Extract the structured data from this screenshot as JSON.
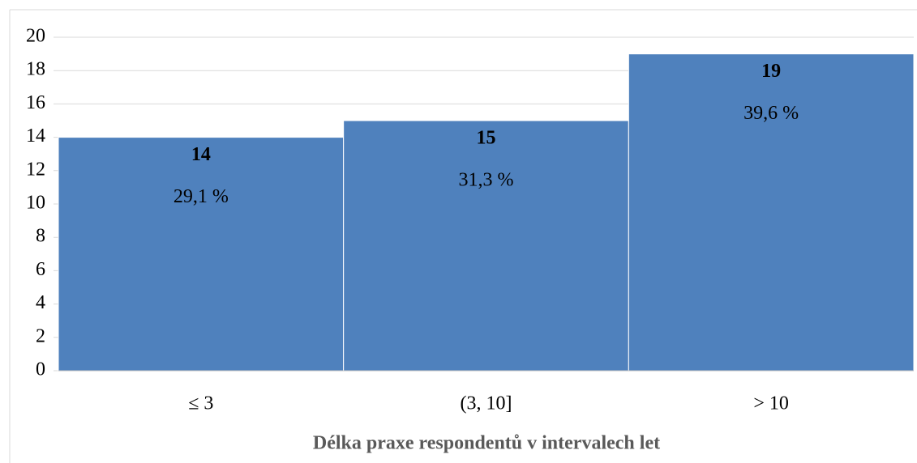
{
  "chart_data": {
    "type": "bar",
    "x_label": "Délka praxe respondentů v intervalech let",
    "categories": [
      "≤ 3",
      "(3, 10]",
      "> 10"
    ],
    "series": [
      {
        "color": "#4f81bd",
        "values": [
          14,
          15,
          19
        ]
      }
    ],
    "percentages": {
      "values": [
        29.1,
        31.3,
        39.6
      ],
      "value_labels": [
        "29,1 %",
        "31,3 %",
        "39,6 %"
      ]
    },
    "ylim": [
      0,
      20
    ],
    "yticks": [
      0,
      2,
      4,
      6,
      8,
      10,
      12,
      14,
      16,
      18,
      20
    ],
    "grid": true
  }
}
